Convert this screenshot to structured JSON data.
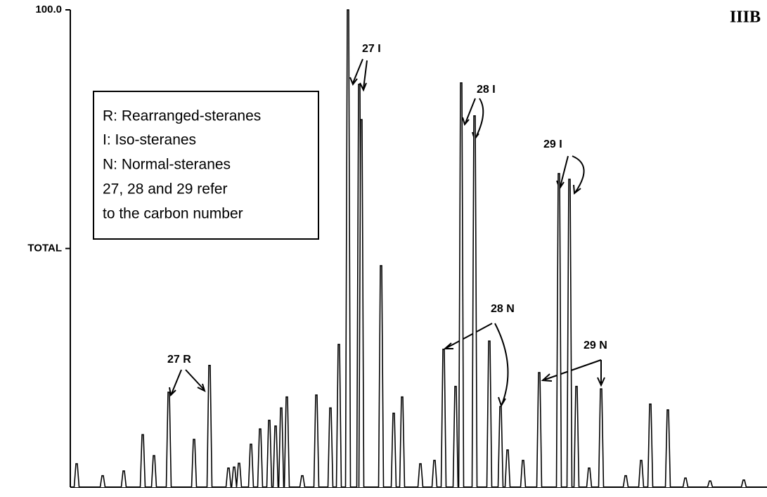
{
  "chart_data": {
    "type": "spectrum",
    "panel_label": "IIIB",
    "legend_box": [
      "R: Rearranged-steranes",
      "I: Iso-steranes",
      "N: Normal-steranes",
      "27, 28 and 29 refer",
      "to the carbon number"
    ],
    "annotations": [
      "27 I",
      "28 I",
      "29 I",
      "27 R",
      "28 N",
      "29 N"
    ],
    "x": [
      9,
      46,
      76,
      103,
      119,
      140,
      176,
      198,
      225,
      233,
      240,
      257,
      270,
      283,
      292,
      300,
      308,
      330,
      350,
      370,
      382,
      395,
      411,
      414,
      442,
      460,
      472,
      498,
      518,
      531,
      548,
      556,
      575,
      596,
      612,
      622,
      644,
      667,
      695,
      710,
      720,
      738,
      755,
      790,
      812,
      825,
      850,
      875,
      910,
      958
    ],
    "values": [
      4.9,
      2.4,
      3.4,
      11,
      6.6,
      19.9,
      10,
      25.5,
      4,
      4.2,
      5,
      9,
      12.2,
      14,
      12.8,
      16.6,
      18.9,
      2.4,
      19.3,
      16.6,
      29.9,
      100,
      84.4,
      77,
      46.4,
      15.5,
      18.9,
      4.9,
      5.6,
      28.9,
      21.1,
      84.7,
      77.8,
      30.6,
      16.9,
      7.8,
      5.6,
      24,
      65.7,
      64.5,
      21.1,
      4,
      20.6,
      2.4,
      5.6,
      17.4,
      16.2,
      1.9,
      1.3,
      1.5
    ],
    "xlim": [
      0,
      991
    ],
    "ylim": [
      0,
      100
    ],
    "yticks": [
      {
        "value": 100,
        "label": "100.0"
      },
      {
        "value": 50,
        "label": "TOTAL"
      }
    ],
    "color": "#000000"
  }
}
